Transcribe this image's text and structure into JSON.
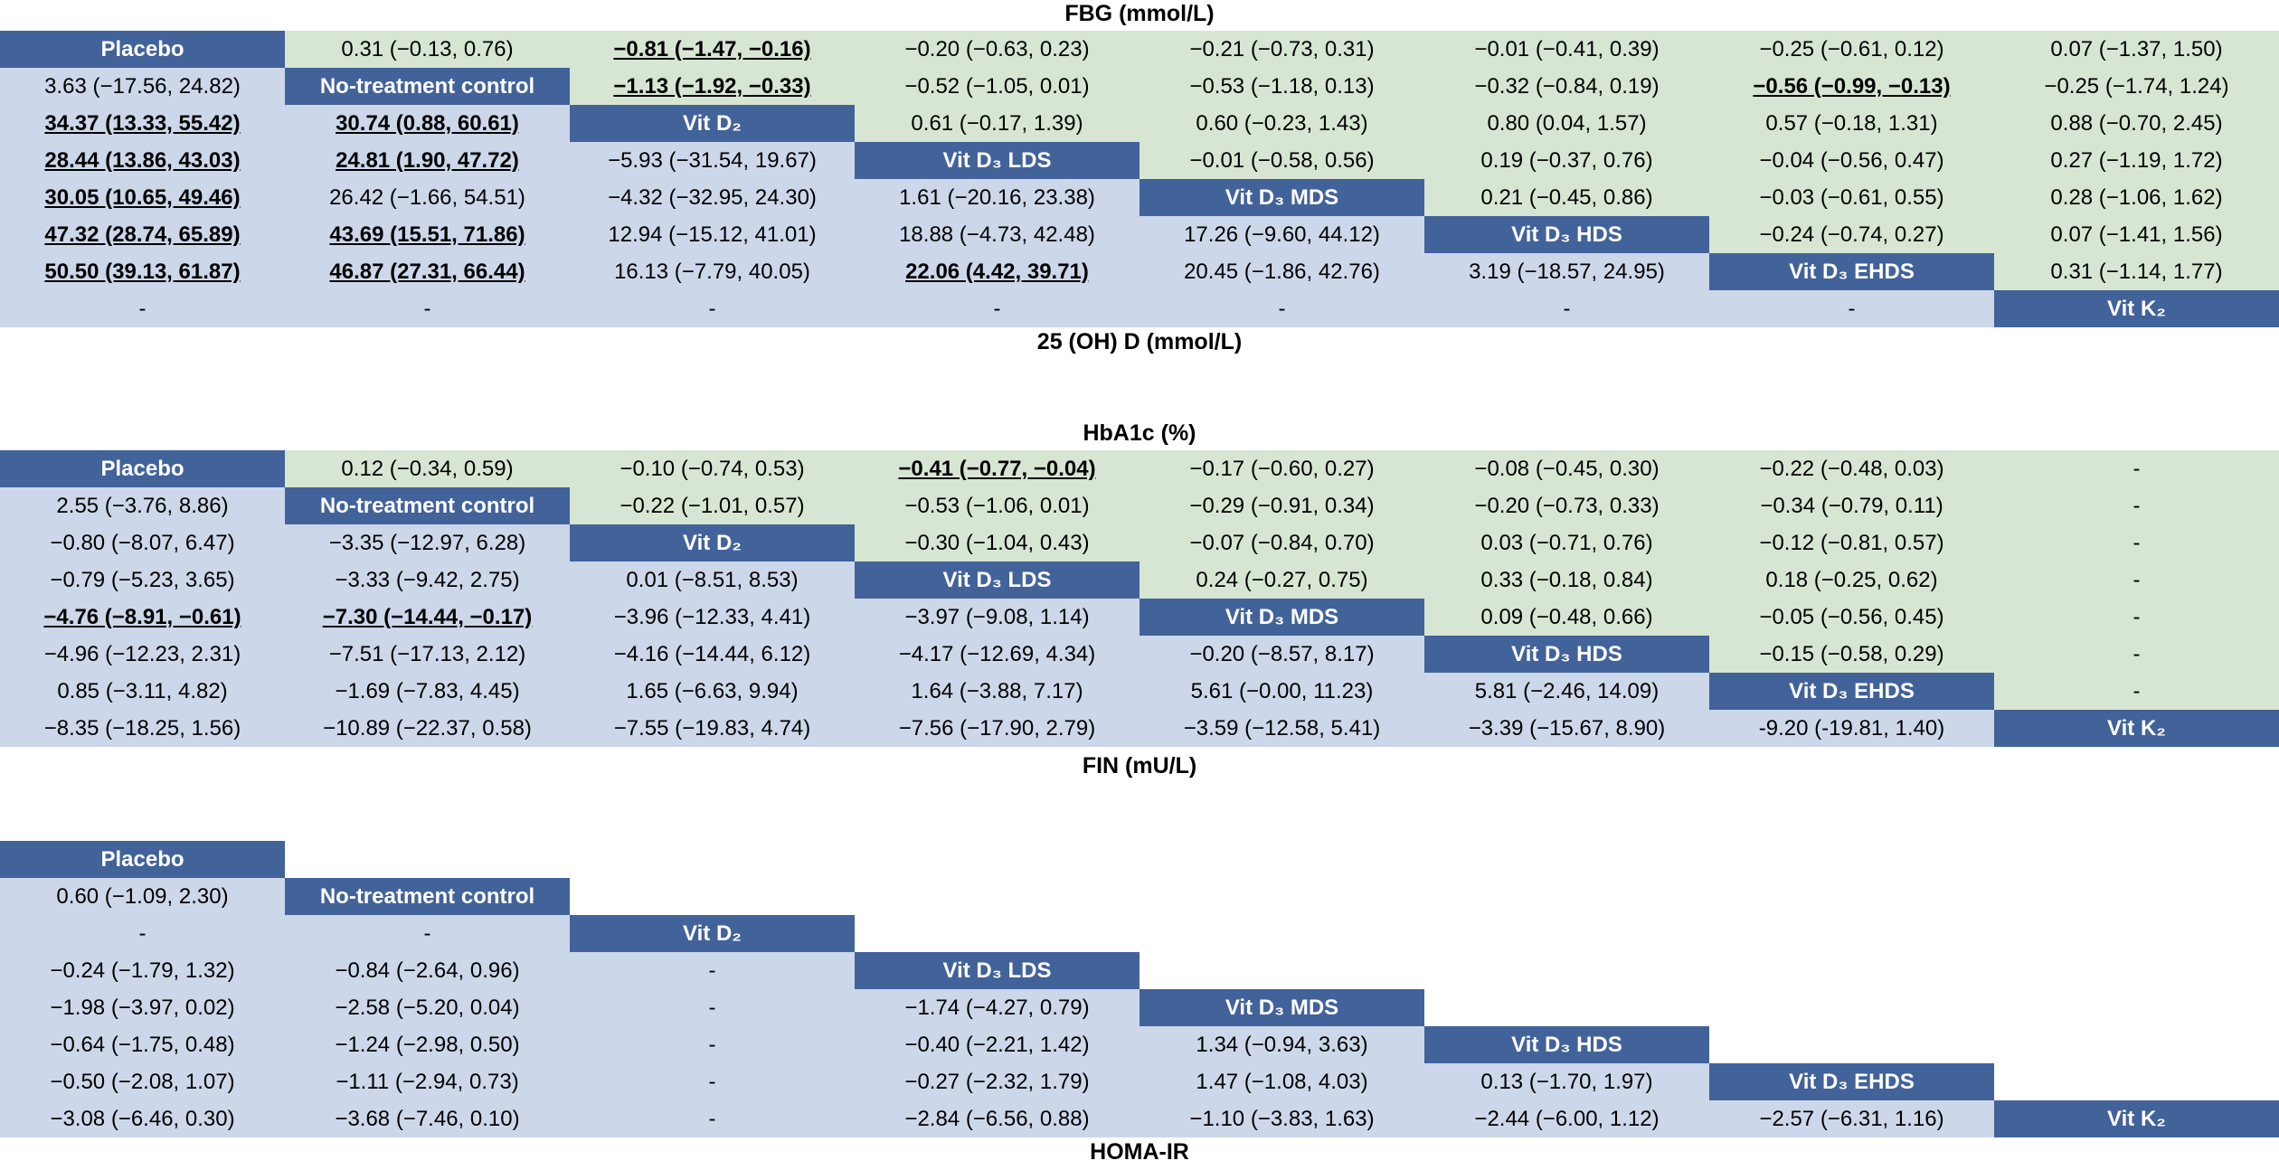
{
  "titles": {
    "fbg": "FBG (mmol/L)",
    "ohd": "25 (OH) D (mmol/L)",
    "hba1c": "HbA1c (%)",
    "fin": "FIN (mU/L)",
    "homa": "HOMA-IR"
  },
  "colors": {
    "lower": "#cdd7ea",
    "upper": "#d7e6d2",
    "diagonal": "#42629a"
  },
  "tables": [
    {
      "id": "fbg-25ohd",
      "rows": [
        [
          {
            "t": "Placebo",
            "k": "diag"
          },
          {
            "t": "0.31 (−0.13, 0.76)",
            "k": "up"
          },
          {
            "t": "−0.81 (−1.47, −0.16)",
            "k": "up",
            "s": true
          },
          {
            "t": "−0.20 (−0.63, 0.23)",
            "k": "up"
          },
          {
            "t": "−0.21 (−0.73, 0.31)",
            "k": "up"
          },
          {
            "t": "−0.01 (−0.41, 0.39)",
            "k": "up"
          },
          {
            "t": "−0.25 (−0.61, 0.12)",
            "k": "up"
          },
          {
            "t": "0.07 (−1.37, 1.50)",
            "k": "up"
          }
        ],
        [
          {
            "t": "3.63 (−17.56, 24.82)",
            "k": "lo"
          },
          {
            "t": "No-treatment control",
            "k": "diag"
          },
          {
            "t": "−1.13 (−1.92, −0.33)",
            "k": "up",
            "s": true
          },
          {
            "t": "−0.52 (−1.05, 0.01)",
            "k": "up"
          },
          {
            "t": "−0.53 (−1.18, 0.13)",
            "k": "up"
          },
          {
            "t": "−0.32 (−0.84, 0.19)",
            "k": "up"
          },
          {
            "t": "−0.56 (−0.99, −0.13)",
            "k": "up",
            "s": true
          },
          {
            "t": "−0.25 (−1.74, 1.24)",
            "k": "up"
          }
        ],
        [
          {
            "t": "34.37 (13.33, 55.42)",
            "k": "lo",
            "s": true
          },
          {
            "t": "30.74 (0.88, 60.61)",
            "k": "lo",
            "s": true
          },
          {
            "t": "Vit D₂",
            "k": "diag"
          },
          {
            "t": "0.61 (−0.17, 1.39)",
            "k": "up"
          },
          {
            "t": "0.60 (−0.23, 1.43)",
            "k": "up"
          },
          {
            "t": "0.80 (0.04, 1.57)",
            "k": "up"
          },
          {
            "t": "0.57 (−0.18, 1.31)",
            "k": "up"
          },
          {
            "t": "0.88 (−0.70, 2.45)",
            "k": "up"
          }
        ],
        [
          {
            "t": "28.44 (13.86, 43.03)",
            "k": "lo",
            "s": true
          },
          {
            "t": "24.81 (1.90, 47.72)",
            "k": "lo",
            "s": true
          },
          {
            "t": "−5.93 (−31.54, 19.67)",
            "k": "lo"
          },
          {
            "t": "Vit D₃ LDS",
            "k": "diag"
          },
          {
            "t": "−0.01 (−0.58, 0.56)",
            "k": "up"
          },
          {
            "t": "0.19 (−0.37, 0.76)",
            "k": "up"
          },
          {
            "t": "−0.04 (−0.56, 0.47)",
            "k": "up"
          },
          {
            "t": "0.27 (−1.19, 1.72)",
            "k": "up"
          }
        ],
        [
          {
            "t": "30.05 (10.65, 49.46)",
            "k": "lo",
            "s": true
          },
          {
            "t": "26.42 (−1.66, 54.51)",
            "k": "lo"
          },
          {
            "t": "−4.32 (−32.95, 24.30)",
            "k": "lo"
          },
          {
            "t": "1.61 (−20.16, 23.38)",
            "k": "lo"
          },
          {
            "t": "Vit D₃ MDS",
            "k": "diag"
          },
          {
            "t": "0.21 (−0.45, 0.86)",
            "k": "up"
          },
          {
            "t": "−0.03 (−0.61, 0.55)",
            "k": "up"
          },
          {
            "t": "0.28 (−1.06, 1.62)",
            "k": "up"
          }
        ],
        [
          {
            "t": "47.32 (28.74, 65.89)",
            "k": "lo",
            "s": true
          },
          {
            "t": "43.69 (15.51, 71.86)",
            "k": "lo",
            "s": true
          },
          {
            "t": "12.94 (−15.12, 41.01)",
            "k": "lo"
          },
          {
            "t": "18.88 (−4.73, 42.48)",
            "k": "lo"
          },
          {
            "t": "17.26 (−9.60, 44.12)",
            "k": "lo"
          },
          {
            "t": "Vit D₃ HDS",
            "k": "diag"
          },
          {
            "t": "−0.24 (−0.74, 0.27)",
            "k": "up"
          },
          {
            "t": "0.07 (−1.41, 1.56)",
            "k": "up"
          }
        ],
        [
          {
            "t": "50.50 (39.13, 61.87)",
            "k": "lo",
            "s": true
          },
          {
            "t": "46.87 (27.31, 66.44)",
            "k": "lo",
            "s": true
          },
          {
            "t": "16.13 (−7.79, 40.05)",
            "k": "lo"
          },
          {
            "t": "22.06 (4.42, 39.71)",
            "k": "lo",
            "s": true
          },
          {
            "t": "20.45 (−1.86, 42.76)",
            "k": "lo"
          },
          {
            "t": "3.19 (−18.57, 24.95)",
            "k": "lo"
          },
          {
            "t": "Vit D₃ EHDS",
            "k": "diag"
          },
          {
            "t": "0.31 (−1.14, 1.77)",
            "k": "up"
          }
        ],
        [
          {
            "t": "-",
            "k": "lo"
          },
          {
            "t": "-",
            "k": "lo"
          },
          {
            "t": "-",
            "k": "lo"
          },
          {
            "t": "-",
            "k": "lo"
          },
          {
            "t": "-",
            "k": "lo"
          },
          {
            "t": "-",
            "k": "lo"
          },
          {
            "t": "-",
            "k": "lo"
          },
          {
            "t": "Vit K₂",
            "k": "diag"
          }
        ]
      ]
    },
    {
      "id": "hba1c-fin",
      "rows": [
        [
          {
            "t": "Placebo",
            "k": "diag"
          },
          {
            "t": "0.12 (−0.34, 0.59)",
            "k": "up"
          },
          {
            "t": "−0.10 (−0.74, 0.53)",
            "k": "up"
          },
          {
            "t": "−0.41 (−0.77, −0.04)",
            "k": "up",
            "s": true
          },
          {
            "t": "−0.17 (−0.60, 0.27)",
            "k": "up"
          },
          {
            "t": "−0.08 (−0.45, 0.30)",
            "k": "up"
          },
          {
            "t": "−0.22 (−0.48, 0.03)",
            "k": "up"
          },
          {
            "t": "-",
            "k": "up"
          }
        ],
        [
          {
            "t": "2.55 (−3.76, 8.86)",
            "k": "lo"
          },
          {
            "t": "No-treatment control",
            "k": "diag"
          },
          {
            "t": "−0.22 (−1.01, 0.57)",
            "k": "up"
          },
          {
            "t": "−0.53 (−1.06, 0.01)",
            "k": "up"
          },
          {
            "t": "−0.29 (−0.91, 0.34)",
            "k": "up"
          },
          {
            "t": "−0.20 (−0.73, 0.33)",
            "k": "up"
          },
          {
            "t": "−0.34 (−0.79, 0.11)",
            "k": "up"
          },
          {
            "t": "-",
            "k": "up"
          }
        ],
        [
          {
            "t": "−0.80 (−8.07, 6.47)",
            "k": "lo"
          },
          {
            "t": "−3.35 (−12.97, 6.28)",
            "k": "lo"
          },
          {
            "t": "Vit D₂",
            "k": "diag"
          },
          {
            "t": "−0.30 (−1.04, 0.43)",
            "k": "up"
          },
          {
            "t": "−0.07 (−0.84, 0.70)",
            "k": "up"
          },
          {
            "t": "0.03 (−0.71, 0.76)",
            "k": "up"
          },
          {
            "t": "−0.12 (−0.81, 0.57)",
            "k": "up"
          },
          {
            "t": "-",
            "k": "up"
          }
        ],
        [
          {
            "t": "−0.79 (−5.23, 3.65)",
            "k": "lo"
          },
          {
            "t": "−3.33 (−9.42, 2.75)",
            "k": "lo"
          },
          {
            "t": "0.01 (−8.51, 8.53)",
            "k": "lo"
          },
          {
            "t": "Vit D₃ LDS",
            "k": "diag"
          },
          {
            "t": "0.24 (−0.27, 0.75)",
            "k": "up"
          },
          {
            "t": "0.33 (−0.18, 0.84)",
            "k": "up"
          },
          {
            "t": "0.18 (−0.25, 0.62)",
            "k": "up"
          },
          {
            "t": "-",
            "k": "up"
          }
        ],
        [
          {
            "t": "−4.76 (−8.91, −0.61)",
            "k": "lo",
            "s": true
          },
          {
            "t": "−7.30 (−14.44, −0.17)",
            "k": "lo",
            "s": true
          },
          {
            "t": "−3.96 (−12.33, 4.41)",
            "k": "lo"
          },
          {
            "t": "−3.97 (−9.08, 1.14)",
            "k": "lo"
          },
          {
            "t": "Vit D₃ MDS",
            "k": "diag"
          },
          {
            "t": "0.09 (−0.48, 0.66)",
            "k": "up"
          },
          {
            "t": "−0.05 (−0.56, 0.45)",
            "k": "up"
          },
          {
            "t": "-",
            "k": "up"
          }
        ],
        [
          {
            "t": "−4.96 (−12.23, 2.31)",
            "k": "lo"
          },
          {
            "t": "−7.51 (−17.13, 2.12)",
            "k": "lo"
          },
          {
            "t": "−4.16 (−14.44, 6.12)",
            "k": "lo"
          },
          {
            "t": "−4.17 (−12.69, 4.34)",
            "k": "lo"
          },
          {
            "t": "−0.20 (−8.57, 8.17)",
            "k": "lo"
          },
          {
            "t": "Vit D₃ HDS",
            "k": "diag"
          },
          {
            "t": "−0.15 (−0.58, 0.29)",
            "k": "up"
          },
          {
            "t": "-",
            "k": "up"
          }
        ],
        [
          {
            "t": "0.85 (−3.11, 4.82)",
            "k": "lo"
          },
          {
            "t": "−1.69 (−7.83, 4.45)",
            "k": "lo"
          },
          {
            "t": "1.65 (−6.63, 9.94)",
            "k": "lo"
          },
          {
            "t": "1.64 (−3.88, 7.17)",
            "k": "lo"
          },
          {
            "t": "5.61 (−0.00, 11.23)",
            "k": "lo"
          },
          {
            "t": "5.81 (−2.46, 14.09)",
            "k": "lo"
          },
          {
            "t": "Vit D₃ EHDS",
            "k": "diag"
          },
          {
            "t": "-",
            "k": "up"
          }
        ],
        [
          {
            "t": "−8.35 (−18.25, 1.56)",
            "k": "lo"
          },
          {
            "t": "−10.89 (−22.37, 0.58)",
            "k": "lo"
          },
          {
            "t": "−7.55 (−19.83, 4.74)",
            "k": "lo"
          },
          {
            "t": "−7.56 (−17.90, 2.79)",
            "k": "lo"
          },
          {
            "t": "−3.59 (−12.58, 5.41)",
            "k": "lo"
          },
          {
            "t": "−3.39 (−15.67, 8.90)",
            "k": "lo"
          },
          {
            "t": "-9.20 (-19.81, 1.40)",
            "k": "lo"
          },
          {
            "t": "Vit K₂",
            "k": "diag"
          }
        ]
      ]
    },
    {
      "id": "homa-ir",
      "rows": [
        [
          {
            "t": "Placebo",
            "k": "diag"
          },
          {
            "t": "",
            "k": "empty"
          },
          {
            "t": "",
            "k": "empty"
          },
          {
            "t": "",
            "k": "empty"
          },
          {
            "t": "",
            "k": "empty"
          },
          {
            "t": "",
            "k": "empty"
          },
          {
            "t": "",
            "k": "empty"
          },
          {
            "t": "",
            "k": "empty"
          }
        ],
        [
          {
            "t": "0.60 (−1.09, 2.30)",
            "k": "lo"
          },
          {
            "t": "No-treatment control",
            "k": "diag"
          },
          {
            "t": "",
            "k": "empty"
          },
          {
            "t": "",
            "k": "empty"
          },
          {
            "t": "",
            "k": "empty"
          },
          {
            "t": "",
            "k": "empty"
          },
          {
            "t": "",
            "k": "empty"
          },
          {
            "t": "",
            "k": "empty"
          }
        ],
        [
          {
            "t": "-",
            "k": "lo"
          },
          {
            "t": "-",
            "k": "lo"
          },
          {
            "t": "Vit D₂",
            "k": "diag"
          },
          {
            "t": "",
            "k": "empty"
          },
          {
            "t": "",
            "k": "empty"
          },
          {
            "t": "",
            "k": "empty"
          },
          {
            "t": "",
            "k": "empty"
          },
          {
            "t": "",
            "k": "empty"
          }
        ],
        [
          {
            "t": "−0.24 (−1.79, 1.32)",
            "k": "lo"
          },
          {
            "t": "−0.84 (−2.64, 0.96)",
            "k": "lo"
          },
          {
            "t": "-",
            "k": "lo"
          },
          {
            "t": "Vit D₃ LDS",
            "k": "diag"
          },
          {
            "t": "",
            "k": "empty"
          },
          {
            "t": "",
            "k": "empty"
          },
          {
            "t": "",
            "k": "empty"
          },
          {
            "t": "",
            "k": "empty"
          }
        ],
        [
          {
            "t": "−1.98 (−3.97, 0.02)",
            "k": "lo"
          },
          {
            "t": "−2.58 (−5.20, 0.04)",
            "k": "lo"
          },
          {
            "t": "-",
            "k": "lo"
          },
          {
            "t": "−1.74 (−4.27, 0.79)",
            "k": "lo"
          },
          {
            "t": "Vit D₃ MDS",
            "k": "diag"
          },
          {
            "t": "",
            "k": "empty"
          },
          {
            "t": "",
            "k": "empty"
          },
          {
            "t": "",
            "k": "empty"
          }
        ],
        [
          {
            "t": "−0.64 (−1.75, 0.48)",
            "k": "lo"
          },
          {
            "t": "−1.24 (−2.98, 0.50)",
            "k": "lo"
          },
          {
            "t": "-",
            "k": "lo"
          },
          {
            "t": "−0.40 (−2.21, 1.42)",
            "k": "lo"
          },
          {
            "t": "1.34 (−0.94, 3.63)",
            "k": "lo"
          },
          {
            "t": "Vit D₃ HDS",
            "k": "diag"
          },
          {
            "t": "",
            "k": "empty"
          },
          {
            "t": "",
            "k": "empty"
          }
        ],
        [
          {
            "t": "−0.50 (−2.08, 1.07)",
            "k": "lo"
          },
          {
            "t": "−1.11 (−2.94, 0.73)",
            "k": "lo"
          },
          {
            "t": "-",
            "k": "lo"
          },
          {
            "t": "−0.27 (−2.32, 1.79)",
            "k": "lo"
          },
          {
            "t": "1.47 (−1.08, 4.03)",
            "k": "lo"
          },
          {
            "t": "0.13 (−1.70, 1.97)",
            "k": "lo"
          },
          {
            "t": "Vit D₃ EHDS",
            "k": "diag"
          },
          {
            "t": "",
            "k": "empty"
          }
        ],
        [
          {
            "t": "−3.08 (−6.46, 0.30)",
            "k": "lo"
          },
          {
            "t": "−3.68 (−7.46, 0.10)",
            "k": "lo"
          },
          {
            "t": "-",
            "k": "lo"
          },
          {
            "t": "−2.84 (−6.56, 0.88)",
            "k": "lo"
          },
          {
            "t": "−1.10 (−3.83, 1.63)",
            "k": "lo"
          },
          {
            "t": "−2.44 (−6.00, 1.12)",
            "k": "lo"
          },
          {
            "t": "−2.57 (−6.31, 1.16)",
            "k": "lo"
          },
          {
            "t": "Vit K₂",
            "k": "diag"
          }
        ]
      ]
    }
  ]
}
